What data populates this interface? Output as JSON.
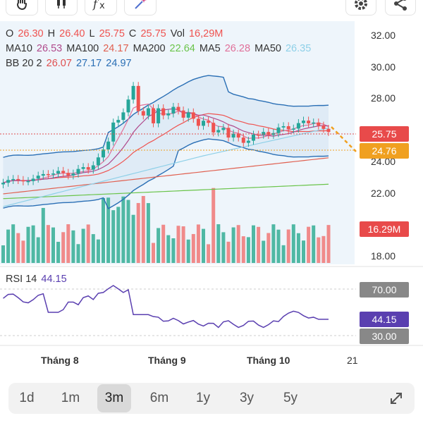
{
  "toolbar": {
    "icons": [
      "hand-icon",
      "candlestick-icon",
      "function-icon",
      "magic-wand-icon",
      "gear-icon",
      "share-icon"
    ]
  },
  "legend": {
    "ohlc": {
      "o_label": "O",
      "o_value": "26.30",
      "h_label": "H",
      "h_value": "26.40",
      "l_label": "L",
      "l_value": "25.75",
      "c_label": "C",
      "c_value": "25.75",
      "vol_label": "Vol",
      "vol_value": "16,29M"
    },
    "ma": {
      "ma10_label": "MA10",
      "ma10_value": "26.53",
      "ma100_label": "MA100",
      "ma100_value": "24.17",
      "ma200_label": "MA200",
      "ma200_value": "22.64",
      "ma5_label": "MA5",
      "ma5_value": "26.28",
      "ma50_label": "MA50",
      "ma50_value": "26.35"
    },
    "bb": {
      "label": "BB 20 2",
      "v1": "26.07",
      "v2": "27.17",
      "v3": "24.97"
    }
  },
  "rsi": {
    "label": "RSI 14",
    "value": "44.15",
    "level_high": "70.00",
    "level_low": "30.00"
  },
  "price_axis": [
    "32.00",
    "30.00",
    "28.00",
    "24.00",
    "22.00",
    "18.00"
  ],
  "tags": {
    "last_price": "25.75",
    "other_price": "24.76",
    "volume": "16.29M",
    "rsi_value": "44.15",
    "rsi_high": "70.00",
    "rsi_low": "30.00"
  },
  "x_axis": [
    "Tháng 8",
    "Tháng 9",
    "Tháng 10",
    "21"
  ],
  "ranges": {
    "items": [
      "1d",
      "1m",
      "3m",
      "6m",
      "1y",
      "3y",
      "5y"
    ],
    "active": "3m"
  },
  "colors": {
    "up": "#26a69a",
    "down": "#ef5350",
    "ma10": "#b04a8c",
    "ma100": "#e06050",
    "ma200": "#6ac44a",
    "ma5": "#e0709a",
    "ma50": "#8ed0e8",
    "bb": "#2a6fb5",
    "rsi": "#5a3fb0",
    "orange": "#f0a020"
  }
}
